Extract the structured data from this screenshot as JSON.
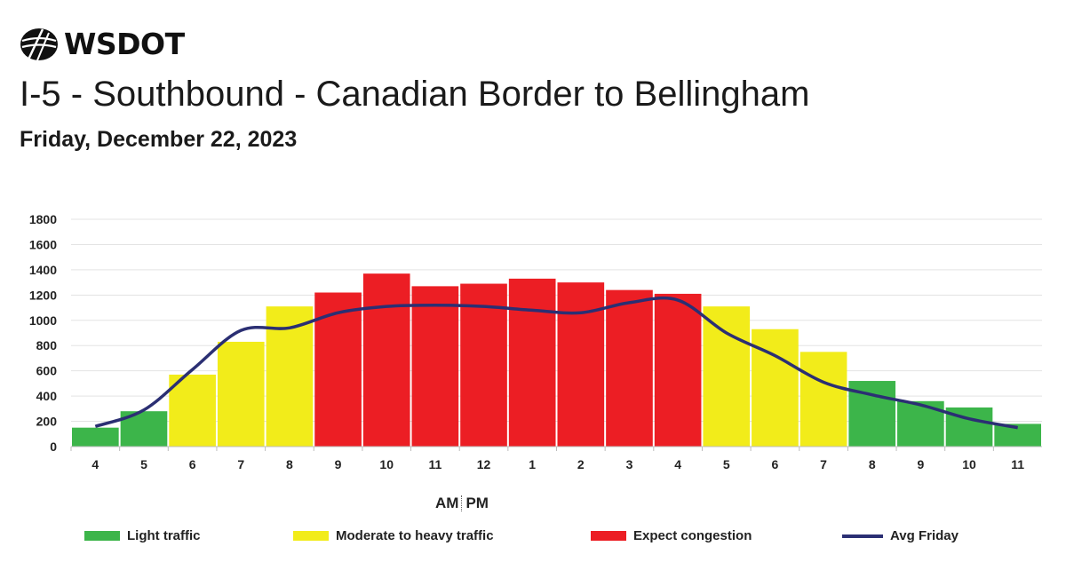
{
  "header": {
    "logo_text": "WSDOT",
    "title": "I-5 - Southbound - Canadian Border to Bellingham",
    "subtitle": "Friday, December 22, 2023"
  },
  "colors": {
    "light": "#3cb54a",
    "moderate": "#f2ec1a",
    "congestion": "#ec1e24",
    "avg_line": "#2b2f73",
    "grid": "#e3e3e3"
  },
  "ampm": {
    "am": "AM",
    "pm": "PM"
  },
  "legend": {
    "light": "Light traffic",
    "moderate": "Moderate to heavy traffic",
    "congestion": "Expect congestion",
    "avg": "Avg Friday"
  },
  "chart_data": {
    "type": "bar",
    "categories": [
      "4",
      "5",
      "6",
      "7",
      "8",
      "9",
      "10",
      "11",
      "12",
      "1",
      "2",
      "3",
      "4",
      "5",
      "6",
      "7",
      "8",
      "9",
      "10",
      "11"
    ],
    "yticks": [
      "0",
      "200",
      "400",
      "600",
      "800",
      "1000",
      "1200",
      "1400",
      "1600",
      "1800"
    ],
    "ylim": [
      0,
      1800
    ],
    "grid": true,
    "series": [
      {
        "type": "bar",
        "values": [
          150,
          280,
          570,
          830,
          1110,
          1220,
          1370,
          1270,
          1290,
          1330,
          1300,
          1240,
          1210,
          1110,
          930,
          750,
          520,
          360,
          310,
          180
        ],
        "levels": [
          "light",
          "light",
          "moderate",
          "moderate",
          "moderate",
          "congestion",
          "congestion",
          "congestion",
          "congestion",
          "congestion",
          "congestion",
          "congestion",
          "congestion",
          "moderate",
          "moderate",
          "moderate",
          "light",
          "light",
          "light",
          "light"
        ]
      },
      {
        "name": "Avg Friday",
        "type": "line",
        "values": [
          160,
          290,
          610,
          920,
          940,
          1060,
          1110,
          1120,
          1110,
          1080,
          1060,
          1140,
          1160,
          900,
          720,
          510,
          410,
          330,
          220,
          150
        ]
      }
    ],
    "legend_position": "bottom"
  }
}
